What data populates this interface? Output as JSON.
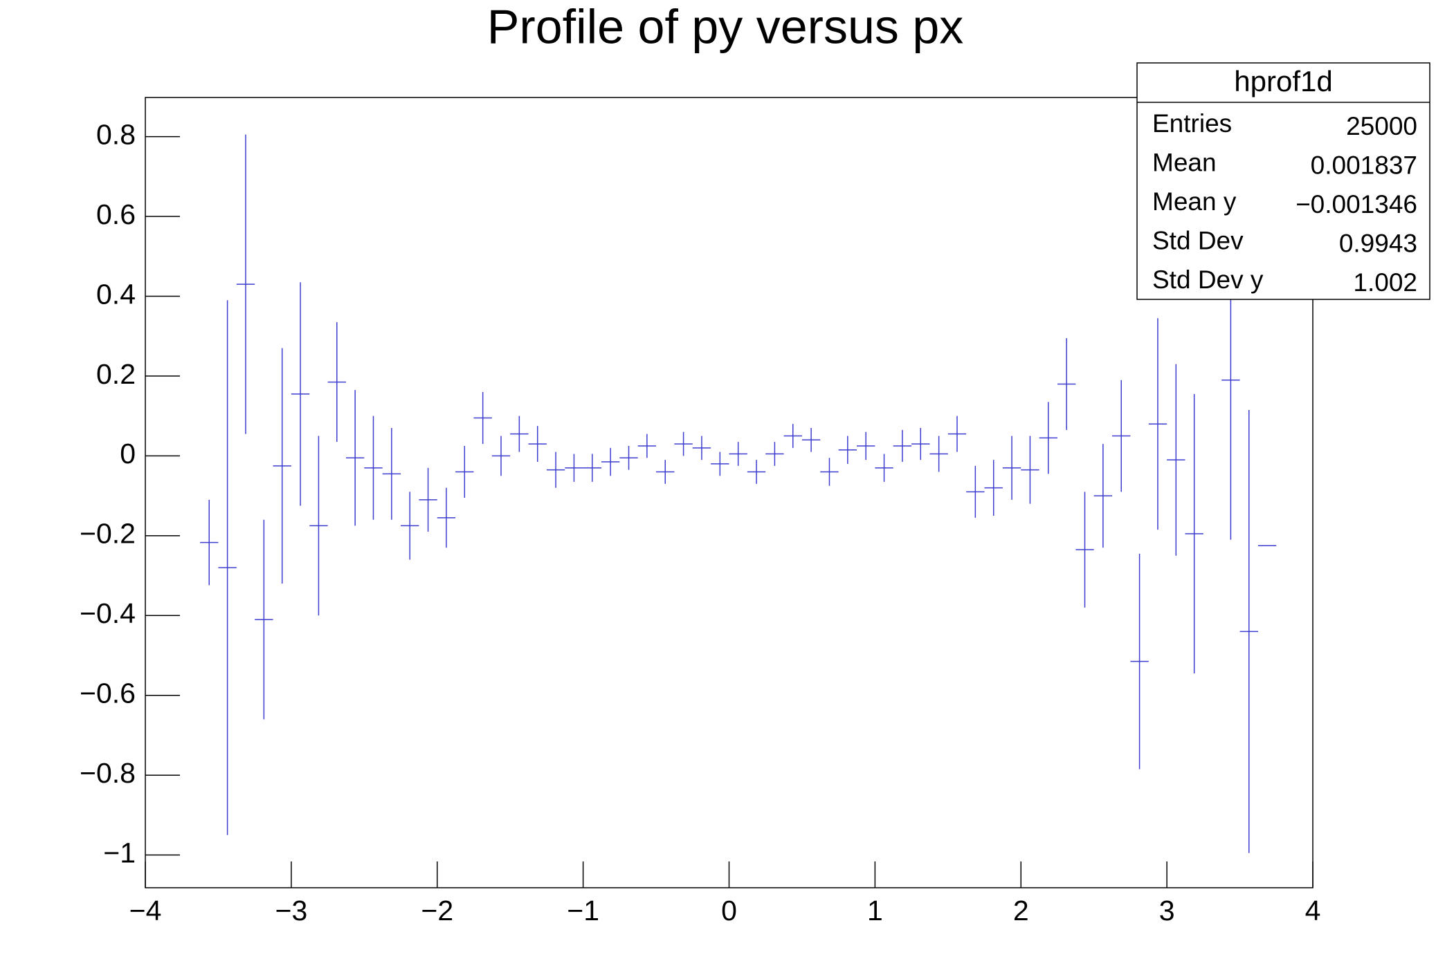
{
  "chart_data": {
    "type": "profile",
    "title": "Profile of py versus px",
    "x": [
      -3.5625,
      -3.4375,
      -3.3125,
      -3.1875,
      -3.0625,
      -2.9375,
      -2.8125,
      -2.6875,
      -2.5625,
      -2.4375,
      -2.3125,
      -2.1875,
      -2.0625,
      -1.9375,
      -1.8125,
      -1.6875,
      -1.5625,
      -1.4375,
      -1.3125,
      -1.1875,
      -1.0625,
      -0.9375,
      -0.8125,
      -0.6875,
      -0.5625,
      -0.4375,
      -0.3125,
      -0.1875,
      -0.0625,
      0.0625,
      0.1875,
      0.3125,
      0.4375,
      0.5625,
      0.6875,
      0.8125,
      0.9375,
      1.0625,
      1.1875,
      1.3125,
      1.4375,
      1.5625,
      1.6875,
      1.8125,
      1.9375,
      2.0625,
      2.1875,
      2.3125,
      2.4375,
      2.5625,
      2.6875,
      2.8125,
      2.9375,
      3.0625,
      3.1875,
      3.4375,
      3.5625,
      3.6875
    ],
    "series": [
      {
        "color": "#3c3cd0",
        "values": [
          -0.217,
          -0.28,
          0.43,
          -0.41,
          -0.025,
          0.155,
          -0.175,
          0.185,
          -0.005,
          -0.03,
          -0.045,
          -0.175,
          -0.11,
          -0.155,
          -0.04,
          0.095,
          0.0,
          0.055,
          0.03,
          -0.035,
          -0.03,
          -0.03,
          -0.015,
          -0.005,
          0.025,
          -0.04,
          0.03,
          0.02,
          -0.02,
          0.005,
          -0.04,
          0.005,
          0.05,
          0.04,
          -0.04,
          0.015,
          0.025,
          -0.03,
          0.025,
          0.03,
          0.005,
          0.055,
          -0.09,
          -0.08,
          -0.03,
          -0.035,
          0.045,
          0.18,
          -0.235,
          -0.1,
          0.05,
          -0.515,
          0.08,
          -0.01,
          -0.195,
          0.19,
          -0.44,
          -0.225
        ],
        "errors": [
          0.107,
          0.67,
          0.375,
          0.25,
          0.295,
          0.28,
          0.225,
          0.15,
          0.17,
          0.13,
          0.115,
          0.085,
          0.08,
          0.075,
          0.065,
          0.065,
          0.05,
          0.045,
          0.045,
          0.045,
          0.035,
          0.035,
          0.035,
          0.03,
          0.03,
          0.03,
          0.03,
          0.03,
          0.03,
          0.03,
          0.03,
          0.03,
          0.03,
          0.03,
          0.035,
          0.035,
          0.035,
          0.035,
          0.04,
          0.04,
          0.045,
          0.045,
          0.065,
          0.07,
          0.08,
          0.085,
          0.09,
          0.115,
          0.145,
          0.13,
          0.14,
          0.27,
          0.265,
          0.24,
          0.35,
          0.4,
          0.555,
          0
        ]
      }
    ],
    "xlim": [
      -4,
      4
    ],
    "xticks": [
      {
        "value": -4,
        "label": "−4"
      },
      {
        "value": -3,
        "label": "−3"
      },
      {
        "value": -2,
        "label": "−2"
      },
      {
        "value": -1,
        "label": "−1"
      },
      0,
      1,
      2,
      3,
      4
    ],
    "ylim": [
      -1.082,
      0.898
    ],
    "yticks": [
      {
        "value": -1,
        "label": "−1"
      },
      {
        "value": -0.8,
        "label": "−0.8"
      },
      {
        "value": -0.6,
        "label": "−0.6"
      },
      {
        "value": -0.4,
        "label": "−0.4"
      },
      {
        "value": -0.2,
        "label": "−0.2"
      },
      0,
      0.2,
      0.4,
      0.6,
      0.8
    ],
    "stats": {
      "title": "hprof1d",
      "rows": [
        [
          "Entries",
          "25000"
        ],
        [
          "Mean",
          "0.001837"
        ],
        [
          "Mean y",
          "−0.001346"
        ],
        [
          "Std Dev",
          "0.9943"
        ],
        [
          "Std Dev y",
          "1.002"
        ]
      ]
    }
  }
}
